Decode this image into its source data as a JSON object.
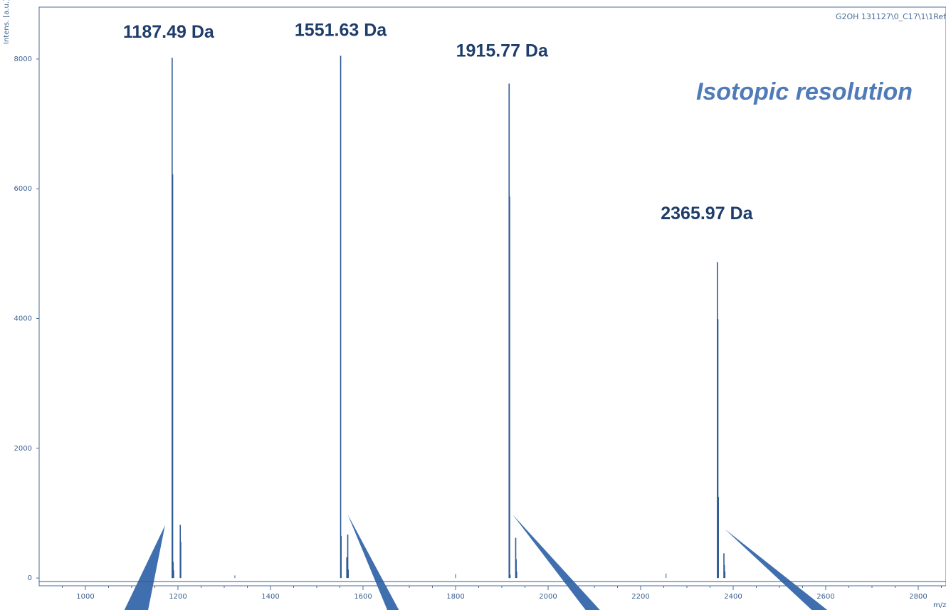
{
  "source_label": "G2OH 131127\\0_C17\\1\\1Ref",
  "annotation": "Isotopic resolution",
  "colors": {
    "line": "#2f5a94",
    "axis": "#4a6c9a",
    "callout": "#3f6fae",
    "label": "#1f3d6b"
  },
  "chart_data": {
    "type": "line",
    "xlabel": "m/z",
    "ylabel": "Intens. [a.u.]",
    "xlim": [
      900,
      2860
    ],
    "ylim": [
      -120,
      8800
    ],
    "x_ticks": [
      1000,
      1200,
      1400,
      1600,
      1800,
      2000,
      2200,
      2400,
      2600,
      2800
    ],
    "y_ticks": [
      0,
      2000,
      4000,
      6000,
      8000
    ],
    "peaks": [
      {
        "label": "1187.49 Da",
        "isotopes": [
          [
            1187.49,
            8020
          ],
          [
            1188.49,
            6220
          ],
          [
            1189.49,
            250
          ],
          [
            1190.49,
            120
          ],
          [
            1205.0,
            820
          ],
          [
            1206.0,
            560
          ]
        ]
      },
      {
        "label": "1551.63 Da",
        "isotopes": [
          [
            1551.63,
            8050
          ],
          [
            1552.63,
            650
          ],
          [
            1565.0,
            320
          ],
          [
            1567.0,
            670
          ],
          [
            1568.0,
            130
          ]
        ]
      },
      {
        "label": "1915.77 Da",
        "isotopes": [
          [
            1915.77,
            7620
          ],
          [
            1916.77,
            5880
          ],
          [
            1917.77,
            50
          ],
          [
            1930.0,
            620
          ],
          [
            1931.0,
            290
          ],
          [
            1932.0,
            100
          ]
        ]
      },
      {
        "label": "2365.97 Da",
        "isotopes": [
          [
            2365.97,
            4870
          ],
          [
            2366.97,
            3990
          ],
          [
            2367.97,
            1250
          ],
          [
            2380.0,
            380
          ],
          [
            2381.0,
            200
          ],
          [
            2382.0,
            100
          ]
        ]
      }
    ],
    "minor_peaks": [
      [
        1323,
        40
      ],
      [
        1800,
        60
      ],
      [
        2255,
        70
      ]
    ]
  }
}
